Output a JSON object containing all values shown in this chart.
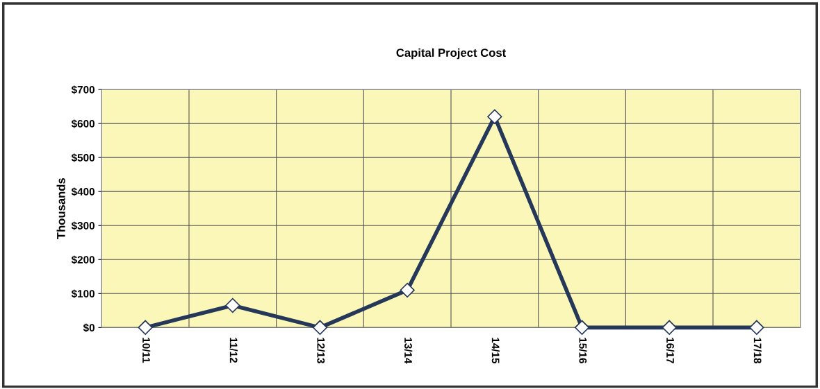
{
  "chart_data": {
    "type": "line",
    "title": "Capital Project Cost",
    "ylabel": "Thousands",
    "categories": [
      "10/11",
      "11/12",
      "12/13",
      "13/14",
      "14/15",
      "15/16",
      "16/17",
      "17/18"
    ],
    "series": [
      {
        "color": "#26385a",
        "values": [
          0,
          65,
          0,
          110,
          620,
          0,
          0,
          0
        ]
      }
    ],
    "ylim": [
      0,
      700
    ],
    "yticks": [
      {
        "value": 0,
        "label": "$0"
      },
      {
        "value": 100,
        "label": "$100"
      },
      {
        "value": 200,
        "label": "$200"
      },
      {
        "value": 300,
        "label": "$300"
      },
      {
        "value": 400,
        "label": "$400"
      },
      {
        "value": 500,
        "label": "$500"
      },
      {
        "value": 600,
        "label": "$600"
      },
      {
        "value": 700,
        "label": "$700"
      }
    ],
    "grid": true,
    "marker": "diamond",
    "line_style": "solid",
    "legend": false
  }
}
